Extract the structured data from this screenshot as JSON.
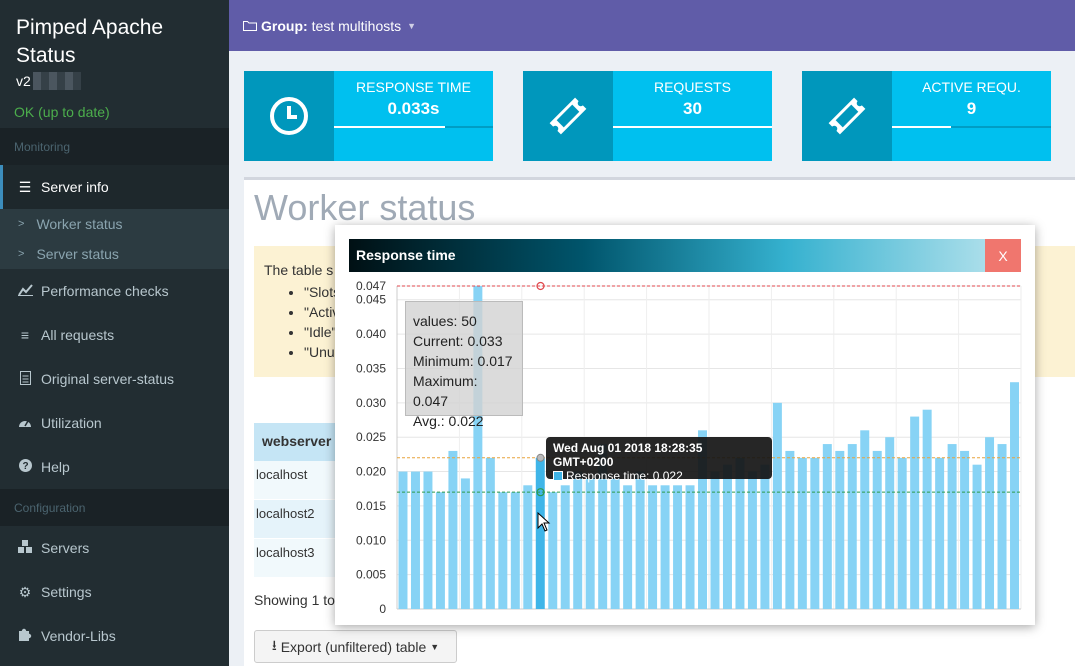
{
  "sidebar": {
    "brand_line1": "Pimped Apache",
    "brand_line2": "Status",
    "version": "v2",
    "status": "OK (up to date)",
    "section_monitoring": "Monitoring",
    "section_configuration": "Configuration",
    "items": {
      "server_info": "Server info",
      "worker_status": "Worker status",
      "server_status": "Server status",
      "performance_checks": "Performance checks",
      "all_requests": "All requests",
      "original_server_status": "Original server-status",
      "utilization": "Utilization",
      "help": "Help",
      "servers": "Servers",
      "settings": "Settings",
      "vendor_libs": "Vendor-Libs"
    }
  },
  "header": {
    "group_label": "Group:",
    "group_name": "test multihosts"
  },
  "infoboxes": [
    {
      "label": "RESPONSE TIME",
      "value": "0.033s",
      "progress": 0.7,
      "icon": "clock-icon"
    },
    {
      "label": "REQUESTS",
      "value": "30",
      "progress": 1.0,
      "icon": "ticket-icon"
    },
    {
      "label": "ACTIVE REQU.",
      "value": "9",
      "progress": 0.37,
      "icon": "ticket-icon"
    }
  ],
  "main": {
    "title": "Worker status",
    "callout_text": "The table s",
    "callout_items": [
      "\"Slots",
      "\"Activ",
      "\"Idle\"",
      "\"Unu"
    ],
    "table_header": "webserver",
    "table_rows": [
      "localhost",
      "localhost2",
      "localhost3"
    ],
    "showing": "Showing 1 to",
    "export_label": "Export (unfiltered) table"
  },
  "popup": {
    "title": "Response time",
    "close_label": "X",
    "stats": {
      "values": "values: 50",
      "current": "Current: 0.033",
      "minimum": "Minimum: 0.017",
      "maximum": "Maximum: 0.047",
      "avg": "Avg.: 0.022"
    },
    "tooltip": {
      "title": "Wed Aug 01 2018 18:28:35 GMT+0200",
      "line": "Response time: 0.022"
    }
  },
  "colors": {
    "sidebar": "#222d32",
    "header": "#605ca8",
    "infobox_dark": "#0097bc",
    "infobox_light": "#00c0ef",
    "bar": "#87d3f5",
    "bar_highlight": "#3fb5e8",
    "max_line": "#e0474c",
    "avg_line": "#e8a33c",
    "min_line": "#2e9a4a"
  },
  "chart_data": {
    "type": "bar",
    "title": "Response time",
    "ylim": [
      0,
      0.047
    ],
    "yticks": [
      "0",
      "0.005",
      "0.010",
      "0.015",
      "0.020",
      "0.025",
      "0.030",
      "0.035",
      "0.040",
      "0.045",
      "0.047"
    ],
    "values": [
      0.02,
      0.02,
      0.02,
      0.017,
      0.023,
      0.019,
      0.047,
      0.022,
      0.017,
      0.017,
      0.018,
      0.022,
      0.017,
      0.018,
      0.02,
      0.019,
      0.024,
      0.019,
      0.018,
      0.02,
      0.018,
      0.018,
      0.018,
      0.018,
      0.026,
      0.02,
      0.021,
      0.022,
      0.02,
      0.021,
      0.03,
      0.023,
      0.022,
      0.022,
      0.024,
      0.023,
      0.024,
      0.026,
      0.023,
      0.025,
      0.022,
      0.028,
      0.029,
      0.022,
      0.024,
      0.023,
      0.021,
      0.025,
      0.024,
      0.033
    ],
    "highlight_index": 11,
    "reference_lines": {
      "max": 0.047,
      "avg": 0.022,
      "min": 0.017
    },
    "grid": true
  }
}
